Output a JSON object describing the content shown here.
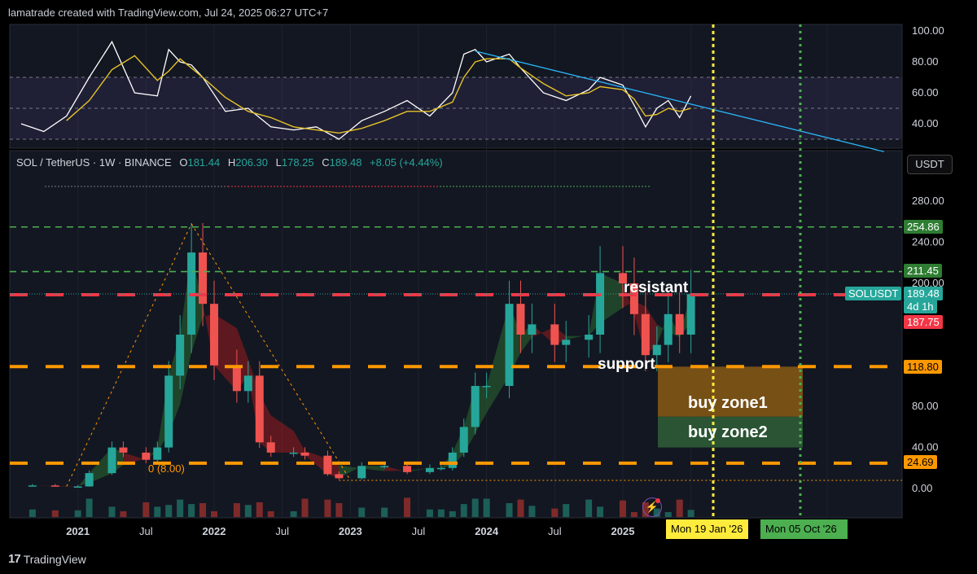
{
  "credit": "lamatrade created with TradingView.com, Jul 24, 2025 06:27 UTC+7",
  "brand": {
    "logo": "17",
    "name": "TradingView"
  },
  "legend": {
    "symbol": "SOL / TetherUS · 1W · BINANCE",
    "open_label": "O",
    "open": "181.44",
    "high_label": "H",
    "high": "206.30",
    "low_label": "L",
    "low": "178.25",
    "close_label": "C",
    "close": "189.48",
    "change": "+8.05 (+4.44%)"
  },
  "currency_button": "USDT",
  "colors": {
    "up": "#26a69a",
    "down": "#ef5350",
    "orange": "#ff9800",
    "green_line": "#4caf50",
    "red_line": "#f23645",
    "yellow": "#ffeb3b",
    "trend": "#29b6f6",
    "rsi": "#ffffff",
    "rsi_ma": "#e6c229"
  },
  "price_tags": {
    "level_25486": "254.86",
    "level_21145": "211.45",
    "current_symbol": "SOLUSDT",
    "current_price": "189.48",
    "countdown": "4d 1h",
    "level_18775": "187.75",
    "level_11880": "118.80",
    "level_2469": "24.69"
  },
  "annotations": {
    "resistant": "resistant",
    "support": "support",
    "buy_zone1": "buy zone1",
    "buy_zone2": "buy zone2",
    "fib_zero": "0 (8.00)"
  },
  "vertical_dates": {
    "yellow": "Mon 19 Jan '26",
    "green": "Mon 05 Oct '26"
  },
  "chart_data": [
    {
      "type": "line",
      "panel": "RSI",
      "y_ticks": [
        "100.00",
        "80.00",
        "60.00",
        "40.00"
      ],
      "ylim": [
        20,
        100
      ],
      "band": [
        30,
        70
      ],
      "midline": 50,
      "x_dates": [
        "2020-08",
        "2020-10",
        "2020-12",
        "2021-02",
        "2021-04",
        "2021-06",
        "2021-08",
        "2021-09",
        "2021-10",
        "2021-11",
        "2021-12",
        "2022-02",
        "2022-04",
        "2022-06",
        "2022-08",
        "2022-10",
        "2022-12",
        "2023-02",
        "2023-04",
        "2023-06",
        "2023-08",
        "2023-10",
        "2023-11",
        "2023-12",
        "2024-01",
        "2024-03",
        "2024-04",
        "2024-06",
        "2024-08",
        "2024-10",
        "2024-11",
        "2025-01",
        "2025-02",
        "2025-03",
        "2025-04",
        "2025-05",
        "2025-06",
        "2025-07"
      ],
      "series": [
        {
          "values": [
            40,
            35,
            45,
            70,
            93,
            60,
            58,
            88,
            80,
            78,
            70,
            48,
            50,
            38,
            36,
            38,
            30,
            42,
            48,
            55,
            45,
            60,
            85,
            88,
            80,
            85,
            76,
            60,
            55,
            62,
            70,
            65,
            52,
            38,
            50,
            55,
            44,
            58
          ]
        },
        {
          "values": [
            null,
            null,
            42,
            55,
            75,
            84,
            68,
            74,
            82,
            76,
            70,
            57,
            48,
            44,
            38,
            36,
            34,
            37,
            42,
            48,
            48,
            54,
            70,
            80,
            82,
            82,
            76,
            66,
            58,
            60,
            64,
            62,
            56,
            45,
            46,
            50,
            48,
            50
          ]
        }
      ],
      "trendline": {
        "from": [
          "2023-12",
          87
        ],
        "to": [
          "2026-12",
          22
        ]
      }
    },
    {
      "type": "candlestick",
      "panel": "price",
      "title": "SOL / TetherUS · 1W · BINANCE",
      "y_ticks": [
        "280.00",
        "240.00",
        "200.00",
        "80.00",
        "40.00",
        "0.00"
      ],
      "x_ticks": [
        "2021",
        "Jul",
        "2022",
        "Jul",
        "2023",
        "Jul",
        "2024",
        "Jul",
        "2025",
        "Jul"
      ],
      "x_dates": [
        "2020-09",
        "2020-11",
        "2021-01",
        "2021-02",
        "2021-04",
        "2021-05",
        "2021-07",
        "2021-08",
        "2021-09",
        "2021-10",
        "2021-11",
        "2021-12",
        "2022-01",
        "2022-03",
        "2022-04",
        "2022-05",
        "2022-06",
        "2022-08",
        "2022-09",
        "2022-11",
        "2022-12",
        "2023-02",
        "2023-04",
        "2023-06",
        "2023-08",
        "2023-09",
        "2023-10",
        "2023-11",
        "2023-12",
        "2024-01",
        "2024-03",
        "2024-04",
        "2024-05",
        "2024-07",
        "2024-08",
        "2024-10",
        "2024-11",
        "2025-01",
        "2025-02",
        "2025-03",
        "2025-04",
        "2025-05",
        "2025-06",
        "2025-07"
      ],
      "close": [
        3,
        2,
        2,
        15,
        40,
        35,
        28,
        40,
        110,
        150,
        230,
        180,
        120,
        95,
        110,
        45,
        35,
        35,
        32,
        14,
        10,
        22,
        22,
        16,
        20,
        20,
        35,
        60,
        100,
        100,
        180,
        150,
        160,
        140,
        145,
        150,
        210,
        200,
        170,
        130,
        140,
        170,
        150,
        189.48
      ],
      "levels_dashed": [
        {
          "value": 254.86,
          "color": "green"
        },
        {
          "value": 211.45,
          "color": "green"
        },
        {
          "value": 187.75,
          "color": "red",
          "label": "resistant"
        },
        {
          "value": 118.8,
          "color": "orange",
          "label": "support"
        },
        {
          "value": 24.69,
          "color": "orange"
        }
      ],
      "zones": [
        {
          "label": "buy zone1",
          "from": 70,
          "to": 118.8
        },
        {
          "label": "buy zone2",
          "from": 40,
          "to": 70
        }
      ],
      "vertical_lines": [
        {
          "date": "Mon 19 Jan '26",
          "color": "yellow"
        },
        {
          "date": "Mon 05 Oct '26",
          "color": "green"
        }
      ],
      "fib_label": "0 (8.00)"
    }
  ]
}
